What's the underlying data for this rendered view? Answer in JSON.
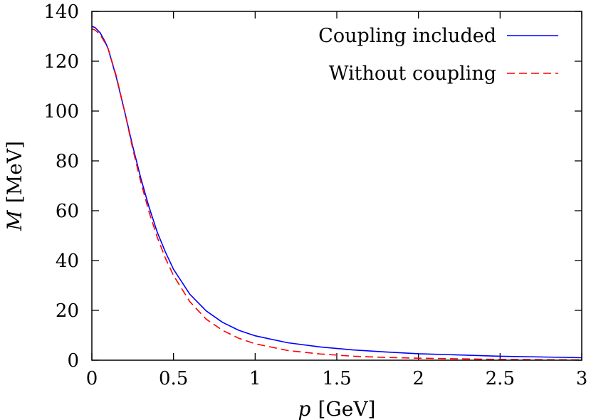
{
  "chart_data": {
    "type": "line",
    "xlabel_symbol": "p",
    "xlabel_unit": "[GeV]",
    "ylabel_symbol": "M",
    "ylabel_unit": "[MeV]",
    "xlim": [
      0,
      3
    ],
    "ylim": [
      0,
      140
    ],
    "xticks": [
      0,
      0.5,
      1,
      1.5,
      2,
      2.5,
      3
    ],
    "xtick_labels": [
      "0",
      "0.5",
      "1",
      "1.5",
      "2",
      "2.5",
      "3"
    ],
    "yticks": [
      0,
      20,
      40,
      60,
      80,
      100,
      120,
      140
    ],
    "ytick_labels": [
      "0",
      "20",
      "40",
      "60",
      "80",
      "100",
      "120",
      "140"
    ],
    "grid": false,
    "legend_position": "top-right",
    "series": [
      {
        "name": "Coupling included",
        "color": "#0000ff",
        "dash": "solid",
        "x": [
          0,
          0.02,
          0.05,
          0.08,
          0.1,
          0.15,
          0.2,
          0.25,
          0.3,
          0.35,
          0.4,
          0.45,
          0.5,
          0.6,
          0.7,
          0.8,
          0.9,
          1.0,
          1.2,
          1.4,
          1.6,
          1.8,
          2.0,
          2.5,
          3.0
        ],
        "y": [
          134,
          133.5,
          131.5,
          128,
          125,
          113.5,
          100,
          86,
          73,
          61.5,
          51.5,
          43.5,
          36.5,
          26.5,
          19.8,
          15.2,
          12.0,
          9.8,
          7.0,
          5.3,
          4.1,
          3.3,
          2.6,
          1.6,
          1.0
        ]
      },
      {
        "name": "Without coupling",
        "color": "#ff0000",
        "dash": "dashed",
        "x": [
          0,
          0.02,
          0.05,
          0.08,
          0.1,
          0.15,
          0.2,
          0.25,
          0.3,
          0.35,
          0.4,
          0.45,
          0.5,
          0.6,
          0.7,
          0.8,
          0.9,
          1.0,
          1.2,
          1.4,
          1.6,
          1.8,
          2.0,
          2.5,
          3.0
        ],
        "y": [
          133,
          132.5,
          130.8,
          127.5,
          125,
          114,
          100,
          85,
          71.5,
          59.5,
          49.5,
          41,
          34,
          23.5,
          16.5,
          12,
          8.8,
          6.6,
          3.9,
          2.5,
          1.6,
          1.1,
          0.8,
          0.3,
          0.1
        ]
      }
    ]
  }
}
